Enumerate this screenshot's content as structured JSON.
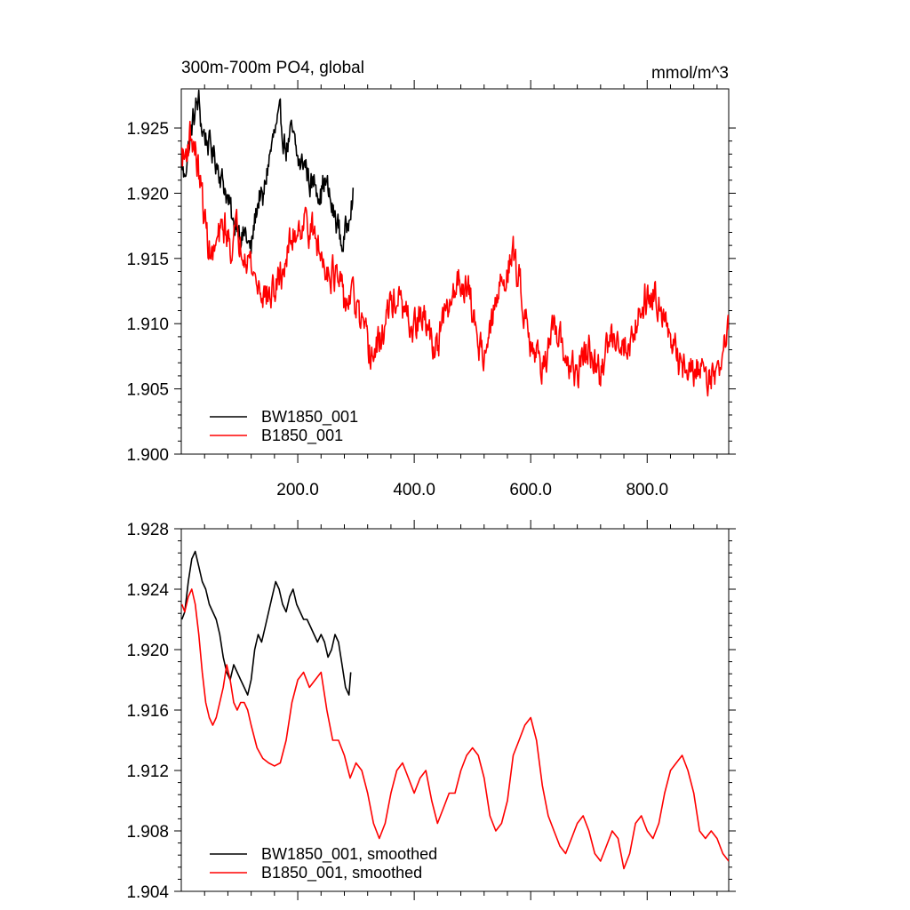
{
  "chart_data": [
    {
      "type": "line",
      "title": "300m-700m PO4, global",
      "units": "mmol/m^3",
      "xlim": [
        0,
        940
      ],
      "ylim": [
        1.9,
        1.928
      ],
      "xticks": [
        200,
        400,
        600,
        800
      ],
      "xtick_labels": [
        "200.0",
        "400.0",
        "600.0",
        "800.0"
      ],
      "yticks": [
        1.9,
        1.905,
        1.91,
        1.915,
        1.92,
        1.925
      ],
      "ytick_labels": [
        "1.900",
        "1.905",
        "1.910",
        "1.915",
        "1.920",
        "1.925"
      ],
      "legend_position": "bottom-left",
      "grid": false,
      "series": [
        {
          "name": "BW1850_001",
          "color": "#000000",
          "noise": 0.0009,
          "x": [
            1,
            5,
            10,
            15,
            20,
            25,
            30,
            35,
            40,
            45,
            50,
            55,
            60,
            65,
            70,
            75,
            80,
            85,
            90,
            95,
            100,
            105,
            110,
            115,
            120,
            125,
            130,
            135,
            140,
            145,
            150,
            155,
            160,
            165,
            170,
            175,
            180,
            185,
            190,
            195,
            200,
            205,
            210,
            215,
            220,
            225,
            230,
            235,
            240,
            245,
            250,
            255,
            260,
            265,
            270,
            275,
            280,
            285,
            290,
            295
          ],
          "y": [
            1.9225,
            1.921,
            1.923,
            1.924,
            1.9255,
            1.9265,
            1.927,
            1.925,
            1.9245,
            1.924,
            1.9235,
            1.923,
            1.9225,
            1.922,
            1.921,
            1.9205,
            1.9195,
            1.9185,
            1.917,
            1.918,
            1.9175,
            1.9165,
            1.917,
            1.916,
            1.9155,
            1.9175,
            1.919,
            1.92,
            1.919,
            1.921,
            1.9225,
            1.9235,
            1.9245,
            1.925,
            1.9255,
            1.9245,
            1.9235,
            1.924,
            1.9245,
            1.9235,
            1.9225,
            1.922,
            1.9225,
            1.922,
            1.921,
            1.9205,
            1.921,
            1.9205,
            1.92,
            1.921,
            1.9205,
            1.9195,
            1.9185,
            1.918,
            1.9175,
            1.916,
            1.9165,
            1.9175,
            1.9195,
            1.92
          ]
        },
        {
          "name": "B1850_001",
          "color": "#ff0000",
          "noise": 0.0011,
          "x": [
            1,
            5,
            10,
            15,
            20,
            25,
            30,
            35,
            40,
            45,
            50,
            55,
            60,
            65,
            70,
            75,
            80,
            85,
            90,
            95,
            100,
            110,
            120,
            130,
            140,
            150,
            160,
            170,
            180,
            190,
            200,
            210,
            220,
            230,
            240,
            250,
            260,
            270,
            280,
            290,
            300,
            310,
            320,
            330,
            340,
            350,
            360,
            370,
            380,
            390,
            400,
            410,
            420,
            430,
            440,
            450,
            460,
            470,
            480,
            490,
            500,
            510,
            520,
            530,
            540,
            550,
            560,
            570,
            580,
            590,
            600,
            610,
            620,
            630,
            640,
            650,
            660,
            670,
            680,
            690,
            700,
            710,
            720,
            730,
            740,
            750,
            760,
            770,
            780,
            790,
            800,
            810,
            820,
            830,
            840,
            850,
            860,
            870,
            880,
            890,
            900,
            910,
            920,
            930,
            940
          ],
          "y": [
            1.923,
            1.9225,
            1.9235,
            1.9245,
            1.924,
            1.923,
            1.9215,
            1.92,
            1.918,
            1.9165,
            1.9155,
            1.915,
            1.916,
            1.9165,
            1.917,
            1.9175,
            1.9165,
            1.916,
            1.9165,
            1.917,
            1.9165,
            1.916,
            1.9145,
            1.913,
            1.9125,
            1.912,
            1.9125,
            1.9135,
            1.915,
            1.9165,
            1.9175,
            1.918,
            1.9175,
            1.9165,
            1.915,
            1.9145,
            1.914,
            1.913,
            1.9115,
            1.912,
            1.9115,
            1.9095,
            1.908,
            1.9075,
            1.9085,
            1.91,
            1.9115,
            1.912,
            1.911,
            1.91,
            1.9095,
            1.9105,
            1.91,
            1.9085,
            1.9085,
            1.91,
            1.911,
            1.913,
            1.9135,
            1.913,
            1.911,
            1.9085,
            1.908,
            1.909,
            1.9115,
            1.913,
            1.9145,
            1.915,
            1.9135,
            1.911,
            1.909,
            1.9075,
            1.907,
            1.908,
            1.909,
            1.9085,
            1.9075,
            1.9065,
            1.906,
            1.9075,
            1.908,
            1.9065,
            1.906,
            1.908,
            1.909,
            1.9095,
            1.908,
            1.9085,
            1.91,
            1.9115,
            1.912,
            1.9125,
            1.912,
            1.911,
            1.908,
            1.9075,
            1.907,
            1.9065,
            1.906,
            1.907,
            1.9065,
            1.906,
            1.906,
            1.908,
            1.9095
          ]
        }
      ]
    },
    {
      "type": "line",
      "title": "",
      "xlim": [
        0,
        940
      ],
      "ylim": [
        1.904,
        1.928
      ],
      "xticks": [
        200,
        400,
        600,
        800
      ],
      "xtick_labels": [],
      "yticks": [
        1.904,
        1.908,
        1.912,
        1.916,
        1.92,
        1.924,
        1.928
      ],
      "ytick_labels": [
        "1.904",
        "1.908",
        "1.912",
        "1.916",
        "1.920",
        "1.924",
        "1.928"
      ],
      "legend_position": "bottom-left",
      "grid": false,
      "series": [
        {
          "name": "BW1850_001, smoothed",
          "color": "#000000",
          "noise": 0,
          "x": [
            1,
            6,
            12,
            18,
            24,
            30,
            36,
            42,
            48,
            54,
            60,
            66,
            72,
            78,
            84,
            90,
            96,
            102,
            108,
            114,
            120,
            126,
            132,
            138,
            144,
            150,
            156,
            162,
            168,
            174,
            180,
            186,
            192,
            198,
            204,
            210,
            216,
            222,
            228,
            234,
            240,
            246,
            252,
            258,
            264,
            270,
            276,
            282,
            288,
            291
          ],
          "y": [
            1.922,
            1.9225,
            1.9245,
            1.926,
            1.9265,
            1.9255,
            1.9245,
            1.924,
            1.923,
            1.9225,
            1.922,
            1.921,
            1.9195,
            1.9185,
            1.918,
            1.919,
            1.9185,
            1.918,
            1.9175,
            1.917,
            1.918,
            1.92,
            1.921,
            1.9205,
            1.9215,
            1.9225,
            1.9235,
            1.9245,
            1.924,
            1.923,
            1.9225,
            1.9235,
            1.924,
            1.923,
            1.9225,
            1.922,
            1.922,
            1.9215,
            1.921,
            1.9205,
            1.921,
            1.9205,
            1.9195,
            1.92,
            1.921,
            1.9205,
            1.919,
            1.9175,
            1.917,
            1.9185
          ]
        },
        {
          "name": "B1850_001, smoothed",
          "color": "#ff0000",
          "noise": 0,
          "x": [
            1,
            6,
            12,
            18,
            24,
            30,
            36,
            42,
            48,
            54,
            60,
            66,
            72,
            78,
            84,
            90,
            96,
            102,
            108,
            114,
            120,
            130,
            140,
            150,
            160,
            170,
            180,
            190,
            200,
            210,
            220,
            230,
            240,
            250,
            260,
            270,
            280,
            290,
            300,
            310,
            320,
            330,
            340,
            350,
            360,
            370,
            380,
            390,
            400,
            410,
            420,
            430,
            440,
            450,
            460,
            470,
            480,
            490,
            500,
            510,
            520,
            530,
            540,
            550,
            560,
            570,
            580,
            590,
            600,
            610,
            620,
            630,
            640,
            650,
            660,
            670,
            680,
            690,
            700,
            710,
            720,
            730,
            740,
            750,
            760,
            770,
            780,
            790,
            800,
            810,
            820,
            830,
            840,
            850,
            860,
            870,
            880,
            890,
            900,
            910,
            920,
            930,
            940
          ],
          "y": [
            1.923,
            1.9225,
            1.9235,
            1.924,
            1.923,
            1.921,
            1.9185,
            1.9165,
            1.9155,
            1.915,
            1.9155,
            1.9165,
            1.9175,
            1.919,
            1.918,
            1.9165,
            1.916,
            1.9165,
            1.9165,
            1.916,
            1.915,
            1.9135,
            1.9128,
            1.9125,
            1.9123,
            1.9125,
            1.914,
            1.9165,
            1.918,
            1.9185,
            1.9175,
            1.918,
            1.9185,
            1.916,
            1.914,
            1.914,
            1.913,
            1.9115,
            1.9125,
            1.912,
            1.9105,
            1.9085,
            1.9075,
            1.9085,
            1.9105,
            1.912,
            1.9125,
            1.9115,
            1.9105,
            1.9115,
            1.912,
            1.91,
            1.9085,
            1.9095,
            1.9105,
            1.9105,
            1.912,
            1.913,
            1.9135,
            1.913,
            1.9115,
            1.909,
            1.908,
            1.9085,
            1.91,
            1.913,
            1.914,
            1.915,
            1.9155,
            1.914,
            1.911,
            1.909,
            1.908,
            1.907,
            1.9065,
            1.9075,
            1.9085,
            1.909,
            1.908,
            1.9065,
            1.906,
            1.907,
            1.908,
            1.9075,
            1.9055,
            1.9065,
            1.9085,
            1.909,
            1.908,
            1.9075,
            1.9085,
            1.9105,
            1.912,
            1.9125,
            1.913,
            1.912,
            1.9105,
            1.908,
            1.9075,
            1.908,
            1.9075,
            1.9065,
            1.906
          ]
        }
      ]
    }
  ]
}
